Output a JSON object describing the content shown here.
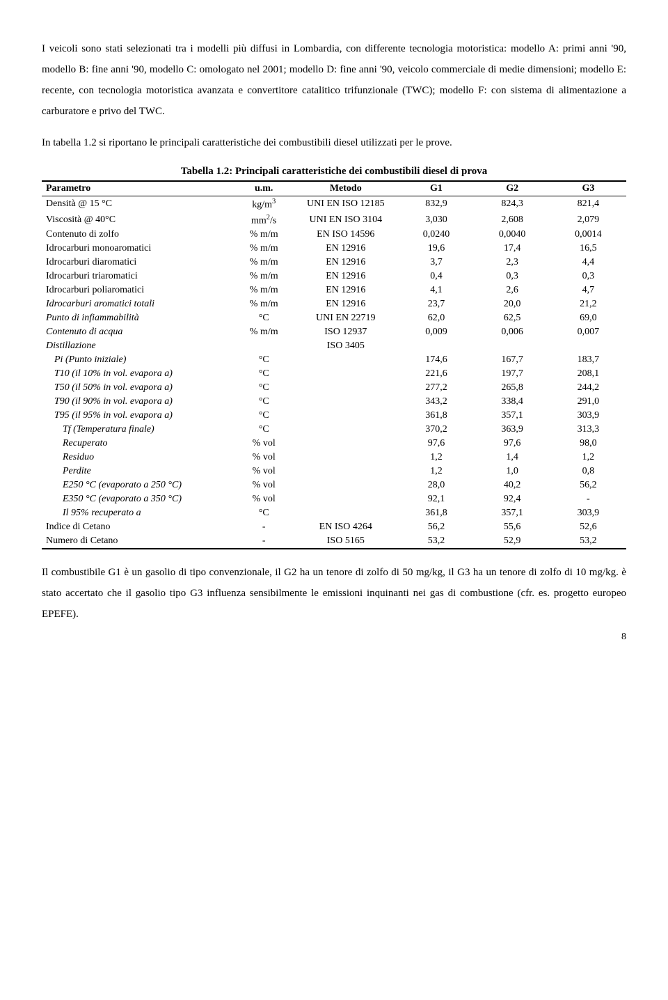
{
  "para1": "I veicoli sono stati selezionati tra i modelli più diffusi in Lombardia, con differente tecnologia motoristica: modello A: primi anni '90, modello B: fine anni '90, modello C: omologato nel 2001; modello D: fine anni '90, veicolo commerciale di medie dimensioni; modello E: recente, con tecnologia motoristica avanzata e convertitore catalitico trifunzionale (TWC); modello F: con sistema di alimentazione a carburatore e privo del TWC.",
  "para2": "In tabella 1.2 si riportano le principali caratteristiche dei combustibili diesel utilizzati per le prove.",
  "caption": "Tabella 1.2: Principali caratteristiche dei combustibili diesel di prova",
  "headers": {
    "param": "Parametro",
    "um": "u.m.",
    "metodo": "Metodo",
    "g1": "G1",
    "g2": "G2",
    "g3": "G3"
  },
  "rows": [
    {
      "p": "Densità @ 15 °C",
      "u": "kg/m",
      "sup": "3",
      "m": "UNI EN ISO 12185",
      "g1": "832,9",
      "g2": "824,3",
      "g3": "821,4"
    },
    {
      "p": "Viscosità @ 40°C",
      "u": "mm",
      "sup": "2",
      "usuffix": "/s",
      "m": "UNI EN ISO 3104",
      "g1": "3,030",
      "g2": "2,608",
      "g3": "2,079"
    },
    {
      "p": "Contenuto di zolfo",
      "u": "% m/m",
      "m": "EN ISO 14596",
      "g1": "0,0240",
      "g2": "0,0040",
      "g3": "0,0014"
    },
    {
      "p": "Idrocarburi monoaromatici",
      "u": "% m/m",
      "m": "EN 12916",
      "g1": "19,6",
      "g2": "17,4",
      "g3": "16,5"
    },
    {
      "p": "Idrocarburi diaromatici",
      "u": "% m/m",
      "m": "EN 12916",
      "g1": "3,7",
      "g2": "2,3",
      "g3": "4,4"
    },
    {
      "p": "Idrocarburi triaromatici",
      "u": "% m/m",
      "m": "EN 12916",
      "g1": "0,4",
      "g2": "0,3",
      "g3": "0,3"
    },
    {
      "p": "Idrocarburi poliaromatici",
      "u": "% m/m",
      "m": "EN 12916",
      "g1": "4,1",
      "g2": "2,6",
      "g3": "4,7"
    },
    {
      "p": "Idrocarburi aromatici totali",
      "italic": true,
      "u": "% m/m",
      "m": "EN 12916",
      "g1": "23,7",
      "g2": "20,0",
      "g3": "21,2"
    },
    {
      "p": "Punto di infiammabilità",
      "italic": true,
      "u": "°C",
      "m": "UNI EN 22719",
      "g1": "62,0",
      "g2": "62,5",
      "g3": "69,0"
    },
    {
      "p": "Contenuto di acqua",
      "italic": true,
      "u": "% m/m",
      "m": "ISO 12937",
      "g1": "0,009",
      "g2": "0,006",
      "g3": "0,007"
    },
    {
      "p": "Distillazione",
      "italic": true,
      "u": "",
      "m": "ISO 3405",
      "g1": "",
      "g2": "",
      "g3": ""
    },
    {
      "p": "Pi (Punto iniziale)",
      "italic": true,
      "indent": 1,
      "u": "°C",
      "m": "",
      "g1": "174,6",
      "g2": "167,7",
      "g3": "183,7"
    },
    {
      "p": "T10 (il 10% in vol. evapora a)",
      "italic": true,
      "indent": 1,
      "u": "°C",
      "m": "",
      "g1": "221,6",
      "g2": "197,7",
      "g3": "208,1"
    },
    {
      "p": "T50 (il 50% in vol. evapora a)",
      "italic": true,
      "indent": 1,
      "u": "°C",
      "m": "",
      "g1": "277,2",
      "g2": "265,8",
      "g3": "244,2"
    },
    {
      "p": "T90 (il 90% in vol. evapora a)",
      "italic": true,
      "indent": 1,
      "u": "°C",
      "m": "",
      "g1": "343,2",
      "g2": "338,4",
      "g3": "291,0"
    },
    {
      "p": "T95 (il 95% in vol. evapora a)",
      "italic": true,
      "indent": 1,
      "u": "°C",
      "m": "",
      "g1": "361,8",
      "g2": "357,1",
      "g3": "303,9"
    },
    {
      "p": "Tf (Temperatura finale)",
      "italic": true,
      "indent": 2,
      "u": "°C",
      "m": "",
      "g1": "370,2",
      "g2": "363,9",
      "g3": "313,3"
    },
    {
      "p": "Recuperato",
      "italic": true,
      "indent": 2,
      "u": "% vol",
      "m": "",
      "g1": "97,6",
      "g2": "97,6",
      "g3": "98,0"
    },
    {
      "p": "Residuo",
      "italic": true,
      "indent": 2,
      "u": "% vol",
      "m": "",
      "g1": "1,2",
      "g2": "1,4",
      "g3": "1,2"
    },
    {
      "p": "Perdite",
      "italic": true,
      "indent": 2,
      "u": "% vol",
      "m": "",
      "g1": "1,2",
      "g2": "1,0",
      "g3": "0,8"
    },
    {
      "p": "E250 °C (evaporato a 250 °C)",
      "italic": true,
      "indent": 2,
      "u": "% vol",
      "m": "",
      "g1": "28,0",
      "g2": "40,2",
      "g3": "56,2"
    },
    {
      "p": "E350 °C (evaporato a 350 °C)",
      "italic": true,
      "indent": 2,
      "u": "% vol",
      "m": "",
      "g1": "92,1",
      "g2": "92,4",
      "g3": "-"
    },
    {
      "p": "Il 95% recuperato a",
      "italic": true,
      "indent": 2,
      "u": "°C",
      "m": "",
      "g1": "361,8",
      "g2": "357,1",
      "g3": "303,9"
    },
    {
      "p": "Indice di Cetano",
      "u": "-",
      "m": "EN ISO 4264",
      "g1": "56,2",
      "g2": "55,6",
      "g3": "52,6"
    },
    {
      "p": "Numero di Cetano",
      "u": "-",
      "m": "ISO 5165",
      "g1": "53,2",
      "g2": "52,9",
      "g3": "53,2"
    }
  ],
  "para3": "Il combustibile G1 è un gasolio di tipo convenzionale, il G2 ha un tenore di zolfo  di 50 mg/kg, il G3 ha un tenore di zolfo di 10 mg/kg. è stato accertato che il gasolio tipo G3 influenza sensibilmente le emissioni inquinanti nei gas di combustione (cfr. es. progetto europeo EPEFE).",
  "page": "8"
}
